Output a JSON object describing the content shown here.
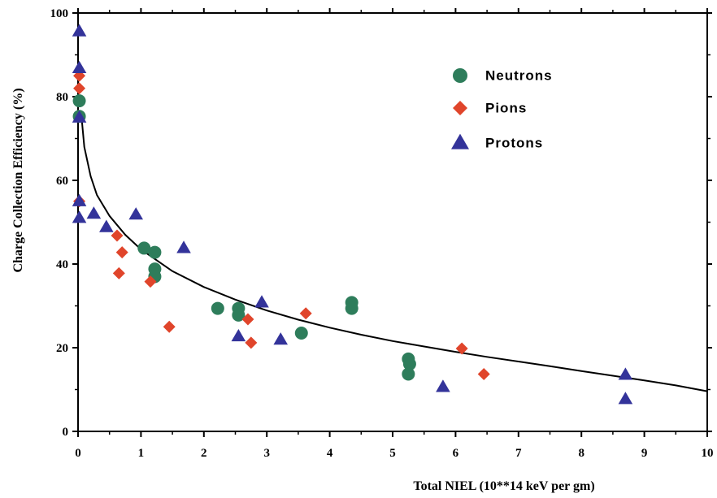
{
  "chart_data": {
    "type": "scatter",
    "title": "",
    "xlabel": "Total NIEL (10**14 keV per gm)",
    "ylabel": "Charge Collection Efficiency (%)",
    "xlim": [
      0,
      10
    ],
    "ylim": [
      0,
      100
    ],
    "x_ticks": [
      "0",
      "1",
      "2",
      "3",
      "4",
      "5",
      "6",
      "7",
      "8",
      "9",
      "10"
    ],
    "y_ticks": [
      "0",
      "20",
      "40",
      "60",
      "80",
      "100"
    ],
    "grid": false,
    "legend_position": "top-right",
    "series": [
      {
        "name": "Neutrons",
        "marker": "circle",
        "color": "#2e7d5b",
        "points": [
          [
            0.02,
            79
          ],
          [
            0.02,
            75.3
          ],
          [
            1.05,
            43.8
          ],
          [
            1.22,
            42.8
          ],
          [
            1.22,
            38.8
          ],
          [
            1.22,
            37
          ],
          [
            2.22,
            29.4
          ],
          [
            2.55,
            29.4
          ],
          [
            2.55,
            27.8
          ],
          [
            3.55,
            23.5
          ],
          [
            4.35,
            30.8
          ],
          [
            4.35,
            29.4
          ],
          [
            5.25,
            17.3
          ],
          [
            5.27,
            16.1
          ],
          [
            5.25,
            13.7
          ]
        ]
      },
      {
        "name": "Pions",
        "marker": "diamond",
        "color": "#e0452b",
        "points": [
          [
            0.02,
            85
          ],
          [
            0.02,
            82
          ],
          [
            0.02,
            55
          ],
          [
            0.62,
            46.8
          ],
          [
            0.7,
            42.8
          ],
          [
            0.65,
            37.8
          ],
          [
            1.15,
            35.8
          ],
          [
            1.45,
            25
          ],
          [
            2.7,
            26.8
          ],
          [
            2.75,
            21.2
          ],
          [
            3.62,
            28.2
          ],
          [
            6.1,
            19.8
          ],
          [
            6.45,
            13.7
          ]
        ]
      },
      {
        "name": "Protons",
        "marker": "triangle",
        "color": "#33339a",
        "points": [
          [
            0.02,
            95.6
          ],
          [
            0.02,
            86.8
          ],
          [
            0.02,
            75
          ],
          [
            0.02,
            55
          ],
          [
            0.02,
            51
          ],
          [
            0.25,
            52
          ],
          [
            0.45,
            48.8
          ],
          [
            0.92,
            51.8
          ],
          [
            1.68,
            43.8
          ],
          [
            2.55,
            22.7
          ],
          [
            2.92,
            30.8
          ],
          [
            3.22,
            21.9
          ],
          [
            5.8,
            10.6
          ],
          [
            8.7,
            13.5
          ],
          [
            8.7,
            7.7
          ]
        ]
      }
    ],
    "fit_curve": {
      "points": [
        [
          0.05,
          76
        ],
        [
          0.1,
          68
        ],
        [
          0.2,
          61
        ],
        [
          0.3,
          56.5
        ],
        [
          0.5,
          51.5
        ],
        [
          0.75,
          47
        ],
        [
          1,
          43.5
        ],
        [
          1.5,
          38.3
        ],
        [
          2,
          34.5
        ],
        [
          2.5,
          31.5
        ],
        [
          3,
          28.9
        ],
        [
          3.5,
          26.7
        ],
        [
          4,
          24.8
        ],
        [
          4.5,
          23.1
        ],
        [
          5,
          21.6
        ],
        [
          5.5,
          20.3
        ],
        [
          6,
          19
        ],
        [
          6.5,
          17.8
        ],
        [
          7,
          16.7
        ],
        [
          7.5,
          15.6
        ],
        [
          8,
          14.4
        ],
        [
          8.5,
          13.3
        ],
        [
          9,
          12.2
        ],
        [
          9.5,
          11
        ],
        [
          10,
          9.6
        ]
      ]
    }
  }
}
